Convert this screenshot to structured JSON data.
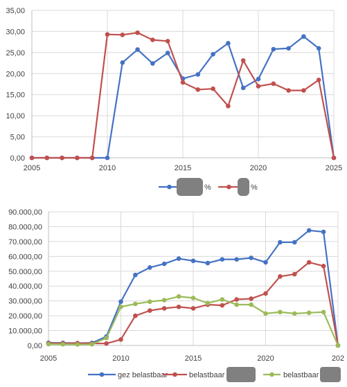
{
  "chart_data": [
    {
      "type": "line",
      "x": [
        2005,
        2006,
        2007,
        2008,
        2009,
        2010,
        2011,
        2012,
        2013,
        2014,
        2015,
        2016,
        2017,
        2018,
        2019,
        2020,
        2021,
        2022,
        2023,
        2024,
        2025
      ],
      "xticks": [
        "2005",
        "2010",
        "2015",
        "2020",
        "2025"
      ],
      "yticks": [
        "0,00",
        "5,00",
        "10,00",
        "15,00",
        "20,00",
        "25,00",
        "30,00",
        "35,00"
      ],
      "xlim": [
        2005,
        2025
      ],
      "ylim": [
        0,
        35
      ],
      "grid": true,
      "legend_position": "bottom",
      "series": [
        {
          "label": "%",
          "redacted": true,
          "color": "#4472c4",
          "values": [
            0,
            0,
            0,
            0,
            0,
            0,
            22.6,
            25.7,
            22.4,
            24.9,
            18.8,
            19.8,
            24.6,
            27.2,
            16.6,
            18.7,
            25.8,
            26.0,
            28.8,
            26.0,
            0
          ]
        },
        {
          "label": "%",
          "redacted": true,
          "color": "#c0504d",
          "values": [
            0,
            0,
            0,
            0,
            0,
            29.3,
            29.2,
            29.7,
            28.0,
            27.7,
            17.9,
            16.2,
            16.4,
            12.3,
            23.1,
            17.0,
            17.6,
            16.0,
            16.0,
            18.5,
            0
          ]
        }
      ]
    },
    {
      "type": "line",
      "x": [
        2005,
        2006,
        2007,
        2008,
        2009,
        2010,
        2011,
        2012,
        2013,
        2014,
        2015,
        2016,
        2017,
        2018,
        2019,
        2020,
        2021,
        2022,
        2023,
        2024,
        2025
      ],
      "xticks": [
        "2005",
        "2010",
        "2015",
        "2020",
        "202"
      ],
      "yticks": [
        "0,00",
        "10.000,00",
        "20.000,00",
        "30.000,00",
        "40.000,00",
        "50.000,00",
        "60.000,00",
        "70.000,00",
        "80.000,00",
        "90.000,00"
      ],
      "xlim": [
        2005,
        2025
      ],
      "ylim": [
        0,
        90000
      ],
      "grid": true,
      "legend_position": "bottom",
      "series": [
        {
          "label": "gez belastbaar",
          "redacted": false,
          "color": "#4472c4",
          "values": [
            1800,
            1700,
            1600,
            1700,
            6000,
            29500,
            47500,
            52500,
            55000,
            58500,
            57000,
            55500,
            58000,
            58000,
            59000,
            56000,
            69500,
            69500,
            77500,
            76500,
            0
          ]
        },
        {
          "label": "belastbaar",
          "redacted": true,
          "color": "#c0504d",
          "values": [
            1500,
            1400,
            1500,
            1400,
            1300,
            4000,
            20000,
            23500,
            25000,
            26000,
            25000,
            27500,
            27000,
            31000,
            31500,
            35000,
            46500,
            48000,
            56000,
            53500,
            0
          ]
        },
        {
          "label": "belastbaar",
          "redacted": true,
          "color": "#9bbb59",
          "values": [
            900,
            800,
            700,
            800,
            5000,
            26000,
            28000,
            29500,
            30500,
            33000,
            32000,
            28500,
            31000,
            27500,
            27500,
            21500,
            22500,
            21500,
            22000,
            22500,
            0
          ]
        }
      ]
    }
  ]
}
